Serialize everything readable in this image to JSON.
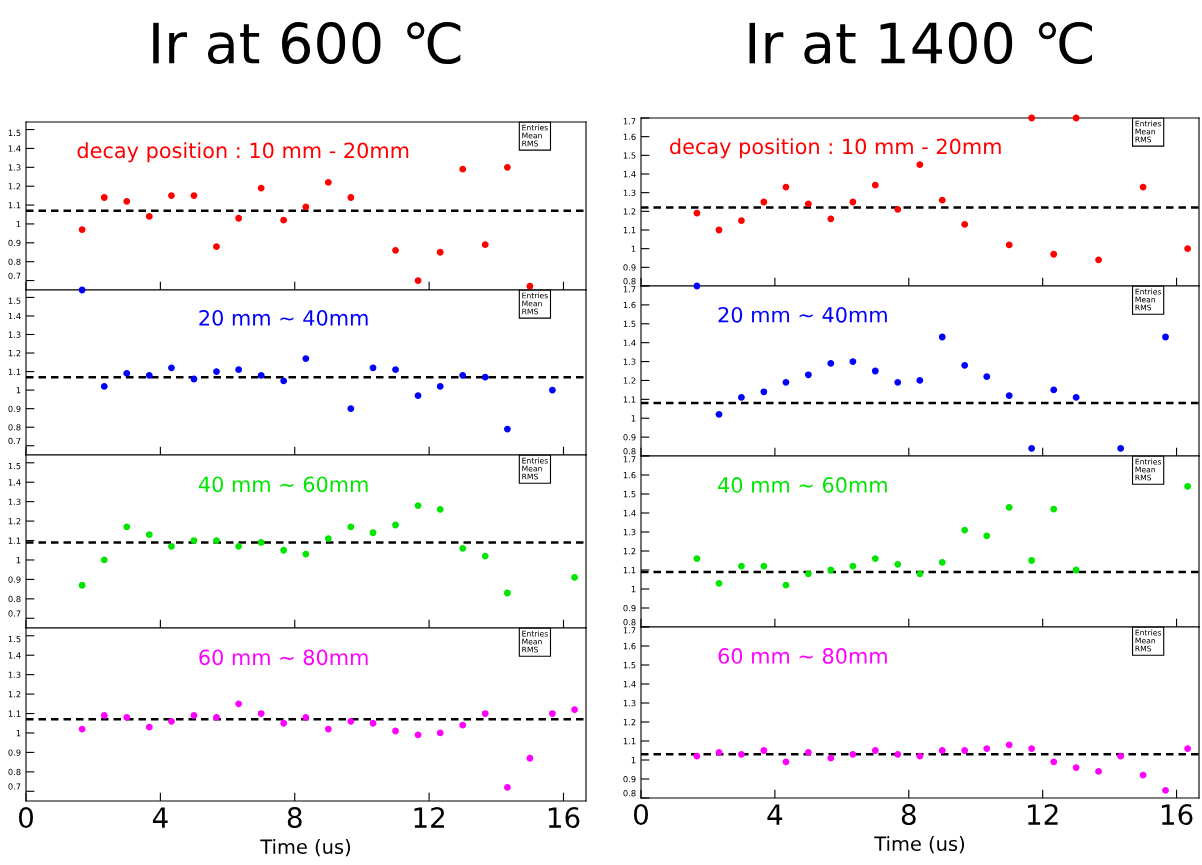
{
  "chart_data": [
    {
      "type": "scatter",
      "title": "Ir at 600 ℃",
      "subtitle": "decay position : 10 mm - 20mm",
      "annotations": [
        "Entries",
        "Mean",
        "RMS"
      ],
      "marker": "circle",
      "tick_labels": "y",
      "x": [
        1.67,
        2.33,
        3.0,
        3.67,
        4.33,
        5.0,
        5.67,
        6.33,
        7.0,
        7.67,
        8.33,
        9.0,
        9.67,
        10.33,
        11.0,
        11.67,
        12.33,
        13.0,
        13.67,
        14.33,
        15.0
      ],
      "series": [
        {
          "color": "#ff0000",
          "values": [
            0.97,
            1.14,
            1.12,
            1.04,
            1.15,
            1.15,
            0.88,
            1.03,
            1.19,
            1.02,
            1.09,
            1.22,
            1.14,
            null,
            0.86,
            0.7,
            0.85,
            1.29,
            0.89,
            1.3,
            0.67
          ]
        }
      ],
      "xlim": [
        0,
        16.67
      ],
      "xticks": [
        0,
        4,
        8,
        12,
        16
      ],
      "ylim": [
        0.65,
        1.54
      ],
      "yticks": [
        0.7,
        0.8,
        0.9,
        1,
        1.1,
        1.2,
        1.3,
        1.4,
        1.5
      ],
      "ref_lines": [
        {
          "axis": "y",
          "value": 1.07,
          "color": "#000000",
          "line_style": "dashed"
        }
      ]
    },
    {
      "type": "scatter",
      "subtitle": "20 mm ~ 40mm",
      "annotations": [
        "Entries",
        "Mean",
        "RMS"
      ],
      "marker": "circle",
      "tick_labels": "y",
      "x": [
        1.67,
        2.33,
        3.0,
        3.67,
        4.33,
        5.0,
        5.67,
        6.33,
        7.0,
        7.67,
        8.33,
        9.0,
        9.67,
        10.33,
        11.0,
        11.67,
        12.33,
        13.0,
        13.67,
        14.33,
        15.0,
        15.67
      ],
      "series": [
        {
          "color": "#0000ff",
          "values": [
            1.54,
            1.02,
            1.09,
            1.08,
            1.12,
            1.06,
            1.1,
            1.11,
            1.08,
            1.05,
            1.17,
            null,
            0.9,
            1.12,
            1.11,
            0.97,
            1.02,
            1.08,
            1.07,
            0.79,
            null,
            1.0
          ]
        }
      ],
      "xlim": [
        0,
        16.67
      ],
      "xticks": [
        0,
        4,
        8,
        12,
        16
      ],
      "ylim": [
        0.65,
        1.54
      ],
      "yticks": [
        0.7,
        0.8,
        0.9,
        1,
        1.1,
        1.2,
        1.3,
        1.4,
        1.5
      ],
      "ref_lines": [
        {
          "axis": "y",
          "value": 1.07,
          "color": "#000000",
          "line_style": "dashed"
        }
      ]
    },
    {
      "type": "scatter",
      "subtitle": "40 mm ~ 60mm",
      "annotations": [
        "Entries",
        "Mean",
        "RMS"
      ],
      "marker": "circle",
      "tick_labels": "y",
      "x": [
        1.67,
        2.33,
        3.0,
        3.67,
        4.33,
        5.0,
        5.67,
        6.33,
        7.0,
        7.67,
        8.33,
        9.0,
        9.67,
        10.33,
        11.0,
        11.67,
        12.33,
        13.0,
        13.67,
        14.33,
        15.0,
        15.67,
        16.33
      ],
      "series": [
        {
          "color": "#00e600",
          "values": [
            0.87,
            1.0,
            1.17,
            1.13,
            1.07,
            1.1,
            1.1,
            1.07,
            1.09,
            1.05,
            1.03,
            1.11,
            1.17,
            1.14,
            1.18,
            1.28,
            1.26,
            1.06,
            1.02,
            0.83,
            null,
            null,
            0.91
          ]
        }
      ],
      "xlim": [
        0,
        16.67
      ],
      "xticks": [
        0,
        4,
        8,
        12,
        16
      ],
      "ylim": [
        0.65,
        1.54
      ],
      "yticks": [
        0.7,
        0.8,
        0.9,
        1,
        1.1,
        1.2,
        1.3,
        1.4,
        1.5
      ],
      "ref_lines": [
        {
          "axis": "y",
          "value": 1.09,
          "color": "#000000",
          "line_style": "dashed"
        }
      ]
    },
    {
      "type": "scatter",
      "subtitle": "60 mm ~ 80mm",
      "xlabel": "Time (us)",
      "annotations": [
        "Entries",
        "Mean",
        "RMS"
      ],
      "marker": "circle",
      "x": [
        1.67,
        2.33,
        3.0,
        3.67,
        4.33,
        5.0,
        5.67,
        6.33,
        7.0,
        7.67,
        8.33,
        9.0,
        9.67,
        10.33,
        11.0,
        11.67,
        12.33,
        13.0,
        13.67,
        14.33,
        15.0,
        15.67,
        16.33
      ],
      "series": [
        {
          "color": "#ff00ff",
          "values": [
            1.02,
            1.09,
            1.08,
            1.03,
            1.06,
            1.09,
            1.08,
            1.15,
            1.1,
            1.05,
            1.08,
            1.02,
            1.06,
            1.05,
            1.01,
            0.99,
            1.0,
            1.04,
            1.1,
            0.72,
            0.87,
            1.1,
            1.12
          ]
        }
      ],
      "xlim": [
        0,
        16.67
      ],
      "xticks": [
        0,
        4,
        8,
        12,
        16
      ],
      "ylim": [
        0.65,
        1.54
      ],
      "yticks": [
        0.7,
        0.8,
        0.9,
        1,
        1.1,
        1.2,
        1.3,
        1.4,
        1.5
      ],
      "ref_lines": [
        {
          "axis": "y",
          "value": 1.07,
          "color": "#000000",
          "line_style": "dashed"
        }
      ]
    },
    {
      "type": "scatter",
      "title": "Ir at 1400 ℃",
      "subtitle": "decay position : 10 mm - 20mm",
      "annotations": [
        "Entries",
        "Mean",
        "RMS"
      ],
      "marker": "circle",
      "tick_labels": "y",
      "x": [
        1.67,
        2.33,
        3.0,
        3.67,
        4.33,
        5.0,
        5.67,
        6.33,
        7.0,
        7.67,
        8.33,
        9.0,
        9.67,
        10.33,
        11.0,
        11.67,
        12.33,
        13.0,
        13.67,
        14.33,
        15.0,
        15.67,
        16.33
      ],
      "series": [
        {
          "color": "#ff0000",
          "values": [
            1.19,
            1.1,
            1.15,
            1.25,
            1.33,
            1.24,
            1.16,
            1.25,
            1.34,
            1.21,
            1.45,
            1.26,
            1.13,
            null,
            1.02,
            1.7,
            0.97,
            1.7,
            0.94,
            null,
            1.33,
            null,
            1.0
          ]
        }
      ],
      "xlim": [
        0,
        16.67
      ],
      "xticks": [
        0,
        4,
        8,
        12,
        16
      ],
      "ylim": [
        0.8,
        1.7
      ],
      "yticks": [
        0.8,
        0.9,
        1,
        1.1,
        1.2,
        1.3,
        1.4,
        1.5,
        1.6,
        1.7
      ],
      "ref_lines": [
        {
          "axis": "y",
          "value": 1.22,
          "color": "#000000",
          "line_style": "dashed"
        }
      ]
    },
    {
      "type": "scatter",
      "subtitle": "20 mm ~ 40mm",
      "annotations": [
        "Entries",
        "Mean",
        "RMS"
      ],
      "marker": "circle",
      "tick_labels": "y",
      "x": [
        1.67,
        2.33,
        3.0,
        3.67,
        4.33,
        5.0,
        5.67,
        6.33,
        7.0,
        7.67,
        8.33,
        9.0,
        9.67,
        10.33,
        11.0,
        11.67,
        12.33,
        13.0,
        13.67,
        14.33,
        15.0,
        15.67
      ],
      "series": [
        {
          "color": "#0000ff",
          "values": [
            1.7,
            1.02,
            1.11,
            1.14,
            1.19,
            1.23,
            1.29,
            1.3,
            1.25,
            1.19,
            1.2,
            1.43,
            1.28,
            1.22,
            1.12,
            0.84,
            1.15,
            1.11,
            null,
            0.84,
            null,
            1.43
          ]
        }
      ],
      "xlim": [
        0,
        16.67
      ],
      "xticks": [
        0,
        4,
        8,
        12,
        16
      ],
      "ylim": [
        0.8,
        1.7
      ],
      "yticks": [
        0.8,
        0.9,
        1,
        1.1,
        1.2,
        1.3,
        1.4,
        1.5,
        1.6,
        1.7
      ],
      "ref_lines": [
        {
          "axis": "y",
          "value": 1.08,
          "color": "#000000",
          "line_style": "dashed"
        }
      ]
    },
    {
      "type": "scatter",
      "subtitle": "40 mm ~ 60mm",
      "annotations": [
        "Entries",
        "Mean",
        "RMS"
      ],
      "marker": "circle",
      "tick_labels": "y",
      "x": [
        1.67,
        2.33,
        3.0,
        3.67,
        4.33,
        5.0,
        5.67,
        6.33,
        7.0,
        7.67,
        8.33,
        9.0,
        9.67,
        10.33,
        11.0,
        11.67,
        12.33,
        13.0,
        13.67,
        14.33,
        15.0,
        15.67,
        16.33
      ],
      "series": [
        {
          "color": "#00e600",
          "values": [
            1.16,
            1.03,
            1.12,
            1.12,
            1.02,
            1.08,
            1.1,
            1.12,
            1.16,
            1.13,
            1.08,
            1.14,
            1.31,
            1.28,
            1.43,
            1.15,
            1.42,
            1.1,
            null,
            null,
            null,
            null,
            1.54
          ]
        }
      ],
      "xlim": [
        0,
        16.67
      ],
      "xticks": [
        0,
        4,
        8,
        12,
        16
      ],
      "ylim": [
        0.8,
        1.7
      ],
      "yticks": [
        0.8,
        0.9,
        1,
        1.1,
        1.2,
        1.3,
        1.4,
        1.5,
        1.6,
        1.7
      ],
      "ref_lines": [
        {
          "axis": "y",
          "value": 1.09,
          "color": "#000000",
          "line_style": "dashed"
        }
      ]
    },
    {
      "type": "scatter",
      "subtitle": "60 mm ~ 80mm",
      "xlabel": "Time (us)",
      "annotations": [
        "Entries",
        "Mean",
        "RMS"
      ],
      "marker": "circle",
      "x": [
        1.67,
        2.33,
        3.0,
        3.67,
        4.33,
        5.0,
        5.67,
        6.33,
        7.0,
        7.67,
        8.33,
        9.0,
        9.67,
        10.33,
        11.0,
        11.67,
        12.33,
        13.0,
        13.67,
        14.33,
        15.0,
        15.67,
        16.33
      ],
      "series": [
        {
          "color": "#ff00ff",
          "values": [
            1.02,
            1.04,
            1.03,
            1.05,
            0.99,
            1.04,
            1.01,
            1.03,
            1.05,
            1.03,
            1.02,
            1.05,
            1.05,
            1.06,
            1.08,
            1.06,
            0.99,
            0.96,
            0.94,
            1.02,
            0.92,
            0.84,
            1.06
          ]
        }
      ],
      "xlim": [
        0,
        16.67
      ],
      "xticks": [
        0,
        4,
        8,
        12,
        16
      ],
      "ylim": [
        0.8,
        1.7
      ],
      "yticks": [
        0.8,
        0.9,
        1,
        1.1,
        1.2,
        1.3,
        1.4,
        1.5,
        1.6,
        1.7
      ],
      "ref_lines": [
        {
          "axis": "y",
          "value": 1.03,
          "color": "#000000",
          "line_style": "dashed"
        }
      ]
    }
  ]
}
